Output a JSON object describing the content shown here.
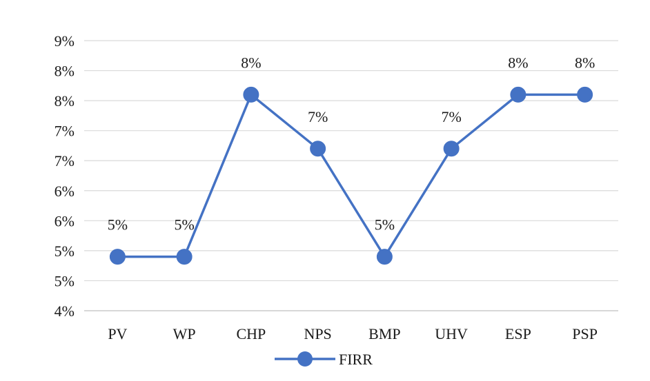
{
  "chart_data": {
    "type": "line",
    "categories": [
      "PV",
      "WP",
      "CHP",
      "NPS",
      "BMP",
      "UHV",
      "ESP",
      "PSP"
    ],
    "series": [
      {
        "name": "FIRR",
        "values": [
          5,
          5,
          8,
          7,
          5,
          7,
          8,
          8
        ],
        "data_labels": [
          "5%",
          "5%",
          "8%",
          "7%",
          "5%",
          "7%",
          "8%",
          "8%"
        ],
        "color": "#4472c4"
      }
    ],
    "ylim": [
      4,
      9
    ],
    "y_tick_labels": [
      "4%",
      "5%",
      "5%",
      "6%",
      "6%",
      "7%",
      "7%",
      "8%",
      "8%",
      "9%"
    ],
    "grid": true,
    "legend": "bottom",
    "title": "",
    "xlabel": "",
    "ylabel": ""
  }
}
